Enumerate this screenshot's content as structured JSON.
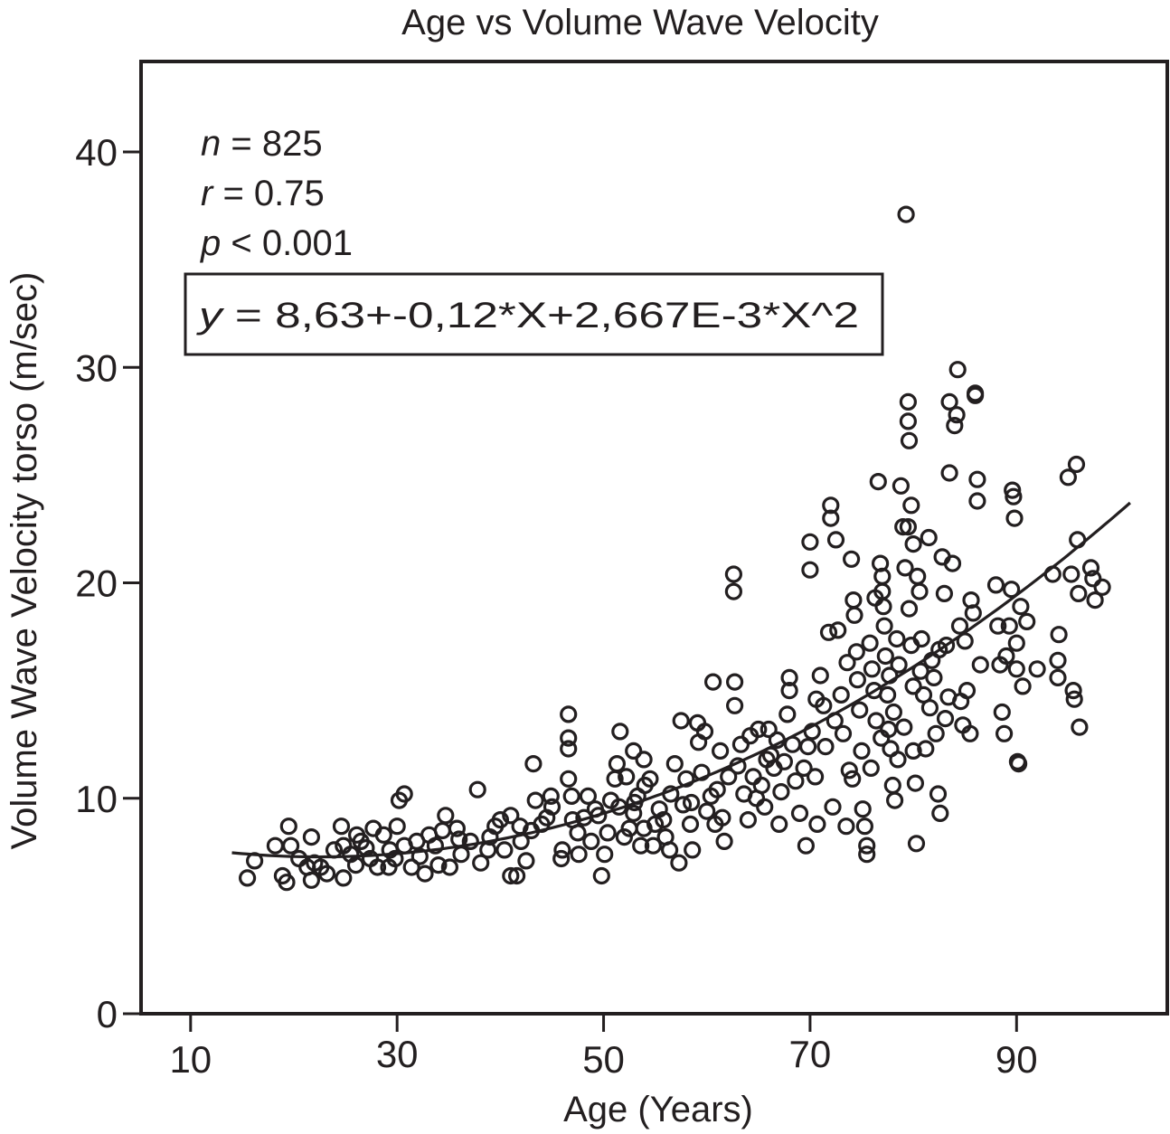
{
  "chart_data": {
    "type": "scatter",
    "title": "Age vs Volume Wave Velocity",
    "xlabel": "Age (Years)",
    "ylabel": "Volume Wave Velocity torso (m/sec)",
    "xlim": [
      5.2,
      104.6
    ],
    "ylim": [
      0,
      44.2
    ],
    "xticks": [
      10,
      30,
      50,
      70,
      90
    ],
    "yticks": [
      0,
      10,
      20,
      30,
      40
    ],
    "grid": false,
    "legend": "none",
    "marker": "open-circle",
    "annotations": {
      "n": {
        "var": "n",
        "op": " = ",
        "value": "825"
      },
      "r": {
        "var": "r",
        "op": " = ",
        "value": "0.75"
      },
      "p": {
        "var": "p",
        "op": " < ",
        "value": "0.001"
      },
      "equation": {
        "var": "y",
        "op": " = ",
        "value": "8,63+-0,12*X+2,667E-3*X^2"
      }
    },
    "fit": {
      "type": "quadratic",
      "coefficients": {
        "a": 8.63,
        "b": -0.12,
        "c": 0.002667
      },
      "x_range": [
        14,
        101
      ]
    },
    "series": [
      {
        "name": "subjects",
        "points": [
          [
            15.5,
            6.3
          ],
          [
            16.2,
            7.1
          ],
          [
            18.2,
            7.8
          ],
          [
            18.9,
            6.4
          ],
          [
            19.3,
            6.1
          ],
          [
            19.5,
            8.7
          ],
          [
            19.7,
            7.8
          ],
          [
            21.3,
            6.8
          ],
          [
            21.7,
            6.2
          ],
          [
            21.7,
            8.2
          ],
          [
            22.6,
            6.8
          ],
          [
            23.2,
            6.5
          ],
          [
            23.9,
            7.6
          ],
          [
            24.8,
            6.3
          ],
          [
            24.6,
            8.7
          ],
          [
            24.8,
            7.8
          ],
          [
            26.1,
            8.3
          ],
          [
            26.5,
            8.0
          ],
          [
            27.4,
            7.2
          ],
          [
            27.7,
            8.6
          ],
          [
            28.1,
            6.8
          ],
          [
            28.7,
            8.3
          ],
          [
            29.2,
            6.8
          ],
          [
            29.3,
            7.6
          ],
          [
            30.0,
            8.7
          ],
          [
            30.2,
            9.9
          ],
          [
            30.7,
            10.2
          ],
          [
            30.7,
            7.8
          ],
          [
            31.4,
            6.8
          ],
          [
            32.7,
            6.5
          ],
          [
            33.1,
            8.3
          ],
          [
            33.7,
            7.8
          ],
          [
            34.4,
            8.5
          ],
          [
            34.7,
            9.2
          ],
          [
            35.1,
            6.8
          ],
          [
            35.8,
            8.6
          ],
          [
            36.2,
            7.4
          ],
          [
            37.8,
            10.4
          ],
          [
            25.5,
            7.4
          ],
          [
            27.0,
            7.7
          ],
          [
            29.8,
            7.2
          ],
          [
            31.9,
            8.0
          ],
          [
            32.2,
            7.3
          ],
          [
            34.0,
            6.9
          ],
          [
            36.0,
            8.1
          ],
          [
            22.0,
            7.0
          ],
          [
            20.5,
            7.2
          ],
          [
            26.0,
            6.9
          ],
          [
            37.1,
            8.0
          ],
          [
            38.1,
            7.0
          ],
          [
            38.8,
            7.6
          ],
          [
            39.5,
            8.7
          ],
          [
            40.4,
            7.6
          ],
          [
            41.0,
            9.2
          ],
          [
            41.0,
            6.4
          ],
          [
            41.6,
            6.4
          ],
          [
            41.9,
            8.7
          ],
          [
            42.5,
            7.1
          ],
          [
            43.0,
            8.5
          ],
          [
            43.2,
            11.6
          ],
          [
            43.4,
            9.9
          ],
          [
            44.5,
            9.1
          ],
          [
            44.9,
            10.1
          ],
          [
            45.9,
            7.2
          ],
          [
            46.0,
            7.6
          ],
          [
            46.6,
            13.9
          ],
          [
            46.6,
            12.8
          ],
          [
            46.6,
            12.3
          ],
          [
            46.6,
            10.9
          ],
          [
            46.9,
            10.1
          ],
          [
            47.5,
            8.4
          ],
          [
            47.6,
            7.4
          ],
          [
            48.1,
            9.1
          ],
          [
            48.5,
            10.1
          ],
          [
            49.2,
            9.5
          ],
          [
            49.8,
            6.4
          ],
          [
            50.1,
            7.4
          ],
          [
            50.4,
            8.4
          ],
          [
            50.7,
            9.9
          ],
          [
            51.1,
            10.9
          ],
          [
            51.3,
            11.6
          ],
          [
            51.6,
            13.1
          ],
          [
            52.0,
            8.2
          ],
          [
            52.2,
            11.0
          ],
          [
            52.9,
            12.2
          ],
          [
            52.9,
            9.3
          ],
          [
            53.3,
            10.1
          ],
          [
            53.6,
            7.8
          ],
          [
            53.9,
            8.6
          ],
          [
            53.9,
            11.8
          ],
          [
            54.5,
            10.9
          ],
          [
            54.8,
            7.8
          ],
          [
            55.4,
            9.5
          ],
          [
            56.0,
            8.2
          ],
          [
            56.4,
            7.6
          ],
          [
            56.9,
            11.6
          ],
          [
            57.5,
            13.6
          ],
          [
            57.3,
            7.0
          ],
          [
            57.7,
            9.7
          ],
          [
            58.0,
            10.9
          ],
          [
            58.4,
            8.8
          ],
          [
            58.6,
            7.6
          ],
          [
            59.1,
            13.5
          ],
          [
            59.2,
            12.6
          ],
          [
            59.5,
            11.2
          ],
          [
            59.8,
            13.1
          ],
          [
            60.4,
            10.1
          ],
          [
            60.6,
            15.4
          ],
          [
            60.8,
            8.8
          ],
          [
            61.3,
            12.2
          ],
          [
            61.5,
            9.1
          ],
          [
            61.7,
            8.0
          ],
          [
            62.1,
            11.0
          ],
          [
            62.6,
            20.4
          ],
          [
            62.6,
            19.6
          ],
          [
            62.7,
            15.4
          ],
          [
            62.7,
            14.3
          ],
          [
            39.0,
            8.2
          ],
          [
            40.0,
            9.0
          ],
          [
            42.0,
            8.0
          ],
          [
            44.0,
            8.8
          ],
          [
            45.0,
            9.6
          ],
          [
            47.0,
            9.0
          ],
          [
            48.8,
            8.0
          ],
          [
            49.5,
            9.2
          ],
          [
            51.5,
            9.6
          ],
          [
            53.0,
            9.8
          ],
          [
            54.0,
            10.6
          ],
          [
            55.0,
            8.8
          ],
          [
            56.5,
            10.2
          ],
          [
            58.5,
            9.8
          ],
          [
            60.0,
            9.4
          ],
          [
            61.0,
            10.4
          ],
          [
            55.8,
            9.0
          ],
          [
            52.5,
            8.6
          ],
          [
            63.0,
            11.5
          ],
          [
            63.3,
            12.5
          ],
          [
            63.6,
            10.2
          ],
          [
            64.0,
            9.0
          ],
          [
            64.2,
            12.9
          ],
          [
            64.5,
            11.0
          ],
          [
            65.0,
            13.2
          ],
          [
            65.3,
            10.6
          ],
          [
            65.6,
            9.6
          ],
          [
            66.0,
            13.2
          ],
          [
            66.2,
            12.0
          ],
          [
            66.5,
            11.4
          ],
          [
            67.0,
            8.8
          ],
          [
            67.2,
            10.3
          ],
          [
            67.5,
            11.7
          ],
          [
            68.0,
            15.6
          ],
          [
            68.0,
            15.0
          ],
          [
            68.3,
            12.5
          ],
          [
            68.6,
            10.8
          ],
          [
            69.0,
            9.3
          ],
          [
            69.4,
            11.4
          ],
          [
            69.6,
            7.8
          ],
          [
            70.0,
            21.9
          ],
          [
            70.0,
            20.6
          ],
          [
            70.2,
            13.1
          ],
          [
            70.5,
            11.0
          ],
          [
            70.7,
            8.8
          ],
          [
            71.0,
            15.7
          ],
          [
            71.3,
            14.3
          ],
          [
            71.5,
            12.4
          ],
          [
            71.8,
            17.7
          ],
          [
            72.0,
            23.6
          ],
          [
            72.0,
            23.0
          ],
          [
            72.2,
            9.6
          ],
          [
            72.5,
            22.0
          ],
          [
            72.7,
            17.8
          ],
          [
            73.0,
            14.8
          ],
          [
            73.2,
            13.0
          ],
          [
            73.5,
            8.7
          ],
          [
            73.8,
            11.3
          ],
          [
            74.0,
            21.1
          ],
          [
            74.2,
            19.2
          ],
          [
            74.3,
            18.5
          ],
          [
            74.5,
            16.8
          ],
          [
            74.6,
            15.5
          ],
          [
            74.8,
            14.1
          ],
          [
            75.0,
            12.2
          ],
          [
            75.1,
            9.5
          ],
          [
            75.3,
            8.7
          ],
          [
            75.5,
            7.8
          ],
          [
            75.5,
            7.4
          ],
          [
            75.8,
            17.2
          ],
          [
            76.0,
            16.0
          ],
          [
            76.2,
            15.0
          ],
          [
            76.4,
            13.6
          ],
          [
            76.6,
            24.7
          ],
          [
            76.8,
            20.9
          ],
          [
            77.0,
            20.3
          ],
          [
            77.0,
            19.6
          ],
          [
            77.1,
            18.9
          ],
          [
            77.2,
            18.0
          ],
          [
            77.3,
            16.6
          ],
          [
            77.5,
            14.8
          ],
          [
            77.6,
            13.2
          ],
          [
            77.8,
            12.3
          ],
          [
            78.0,
            10.6
          ],
          [
            78.2,
            9.9
          ],
          [
            78.4,
            17.4
          ],
          [
            78.6,
            16.2
          ],
          [
            78.8,
            24.5
          ],
          [
            79.0,
            22.6
          ],
          [
            79.2,
            20.7
          ],
          [
            79.3,
            37.1
          ],
          [
            79.5,
            22.6
          ],
          [
            79.6,
            18.8
          ],
          [
            79.8,
            17.1
          ],
          [
            80.0,
            15.2
          ],
          [
            80.0,
            12.2
          ],
          [
            80.2,
            10.7
          ],
          [
            80.3,
            7.9
          ],
          [
            79.5,
            28.4
          ],
          [
            79.5,
            27.5
          ],
          [
            79.6,
            26.6
          ],
          [
            79.8,
            23.6
          ],
          [
            80.0,
            21.8
          ],
          [
            80.4,
            20.3
          ],
          [
            80.6,
            19.6
          ],
          [
            80.8,
            17.4
          ],
          [
            81.0,
            14.8
          ],
          [
            81.2,
            12.3
          ],
          [
            81.5,
            22.1
          ],
          [
            81.8,
            16.4
          ],
          [
            82.0,
            15.6
          ],
          [
            82.2,
            13.0
          ],
          [
            82.4,
            10.2
          ],
          [
            82.6,
            9.3
          ],
          [
            82.8,
            21.2
          ],
          [
            83.0,
            19.5
          ],
          [
            83.2,
            17.1
          ],
          [
            83.4,
            14.7
          ],
          [
            83.5,
            28.4
          ],
          [
            83.5,
            25.1
          ],
          [
            83.8,
            20.9
          ],
          [
            84.0,
            27.3
          ],
          [
            84.2,
            27.8
          ],
          [
            84.3,
            29.9
          ],
          [
            84.5,
            18.0
          ],
          [
            84.6,
            14.5
          ],
          [
            84.8,
            13.4
          ],
          [
            85.0,
            17.3
          ],
          [
            85.2,
            15.0
          ],
          [
            85.5,
            13.0
          ],
          [
            85.6,
            19.2
          ],
          [
            85.8,
            18.6
          ],
          [
            86.0,
            28.7
          ],
          [
            86.0,
            28.8
          ],
          [
            86.2,
            24.8
          ],
          [
            86.2,
            23.8
          ],
          [
            86.5,
            16.2
          ],
          [
            88.0,
            19.9
          ],
          [
            88.2,
            18.0
          ],
          [
            88.4,
            16.2
          ],
          [
            88.6,
            14.0
          ],
          [
            88.8,
            13.0
          ],
          [
            89.0,
            16.6
          ],
          [
            89.3,
            18.0
          ],
          [
            89.5,
            19.7
          ],
          [
            89.6,
            24.3
          ],
          [
            89.7,
            24.0
          ],
          [
            89.8,
            23.0
          ],
          [
            90.0,
            17.2
          ],
          [
            90.0,
            16.0
          ],
          [
            90.1,
            11.7
          ],
          [
            90.2,
            11.6
          ],
          [
            90.4,
            18.9
          ],
          [
            90.6,
            15.2
          ],
          [
            91.0,
            18.2
          ],
          [
            92.0,
            16.0
          ],
          [
            93.5,
            20.4
          ],
          [
            94.0,
            16.4
          ],
          [
            94.0,
            15.6
          ],
          [
            94.1,
            17.6
          ],
          [
            95.0,
            24.9
          ],
          [
            95.3,
            20.4
          ],
          [
            95.5,
            15.0
          ],
          [
            95.6,
            14.6
          ],
          [
            95.8,
            25.5
          ],
          [
            95.9,
            22.0
          ],
          [
            96.0,
            19.5
          ],
          [
            96.1,
            13.3
          ],
          [
            97.2,
            20.7
          ],
          [
            97.4,
            20.2
          ],
          [
            97.6,
            19.2
          ],
          [
            98.3,
            19.8
          ],
          [
            66.8,
            12.7
          ],
          [
            67.8,
            13.9
          ],
          [
            69.8,
            12.4
          ],
          [
            70.6,
            14.6
          ],
          [
            72.4,
            13.6
          ],
          [
            73.6,
            16.3
          ],
          [
            74.1,
            10.9
          ],
          [
            75.9,
            11.4
          ],
          [
            76.9,
            12.8
          ],
          [
            78.1,
            14.0
          ],
          [
            79.1,
            13.3
          ],
          [
            80.7,
            15.9
          ],
          [
            81.6,
            14.2
          ],
          [
            82.5,
            16.9
          ],
          [
            83.1,
            13.7
          ],
          [
            76.3,
            19.3
          ],
          [
            77.7,
            15.7
          ],
          [
            78.5,
            11.8
          ],
          [
            65.8,
            11.8
          ],
          [
            64.8,
            10.0
          ]
        ]
      }
    ]
  }
}
